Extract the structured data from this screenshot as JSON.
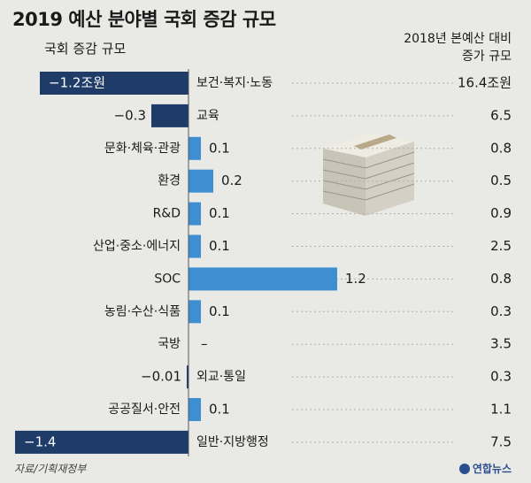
{
  "title": "2019 예산 분야별 국회 증감 규모",
  "left_header": "국회 증감 규모",
  "right_header": [
    "2018년 본예산 대비",
    "증가 규모"
  ],
  "source": "자료/기획재정부",
  "logo_text": "연합뉴스",
  "colors": {
    "negative_bar": "#1f3c68",
    "positive_bar": "#3d8fd1",
    "background": "#e9e9e6",
    "dash": "#b0b0b0"
  },
  "chart_data": {
    "type": "bar",
    "orientation": "horizontal",
    "categories": [
      "보건·복지·노동",
      "교육",
      "문화·체육·관광",
      "환경",
      "R&D",
      "산업·중소·에너지",
      "SOC",
      "농림·수산·식품",
      "국방",
      "외교·통일",
      "공공질서·안전",
      "일반·지방행정"
    ],
    "values": [
      -1.2,
      -0.3,
      0.1,
      0.2,
      0.1,
      0.1,
      1.2,
      0.1,
      0,
      -0.01,
      0.1,
      -1.4
    ],
    "value_labels": [
      "−1.2조원",
      "−0.3",
      "0.1",
      "0.2",
      "0.1",
      "0.1",
      "1.2",
      "0.1",
      "–",
      "−0.01",
      "0.1",
      "−1.4"
    ],
    "vs_2018_budget": [
      "16.4조원",
      "6.5",
      "0.8",
      "0.5",
      "0.9",
      "2.5",
      "0.8",
      "0.3",
      "3.5",
      "0.3",
      "1.1",
      "7.5"
    ]
  }
}
